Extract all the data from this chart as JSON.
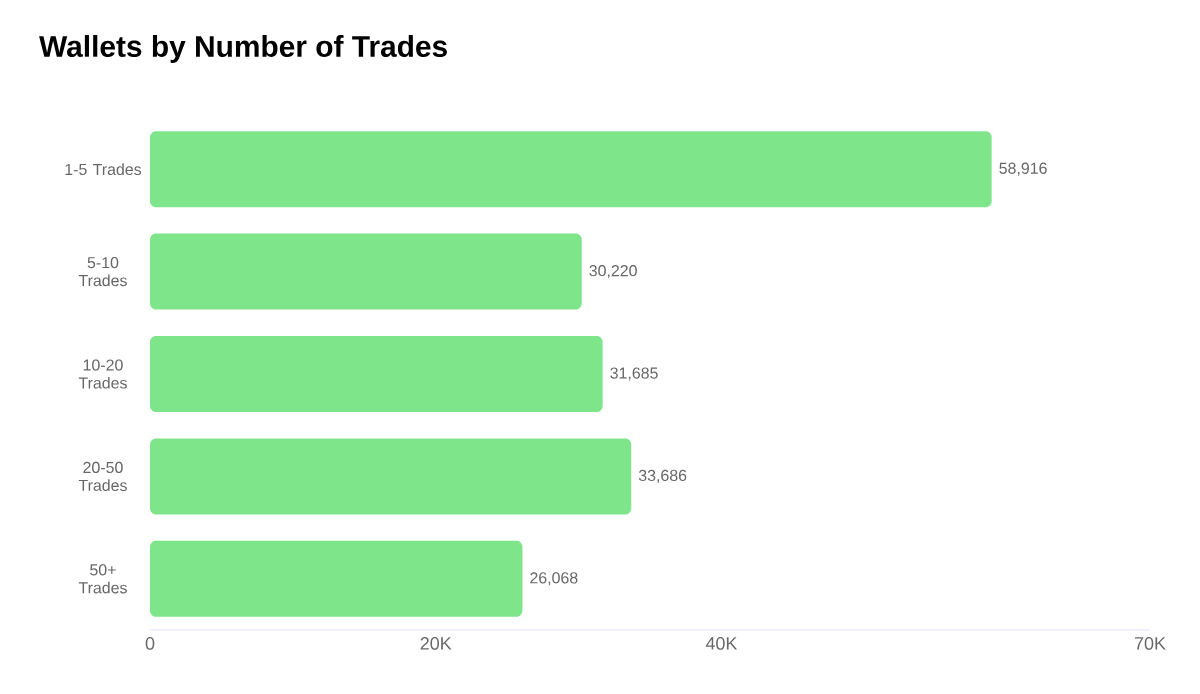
{
  "chart_data": {
    "type": "bar",
    "orientation": "horizontal",
    "title": "Wallets by Number of Trades",
    "categories": [
      "1-5 Trades",
      "5-10 Trades",
      "10-20 Trades",
      "20-50 Trades",
      "50+ Trades"
    ],
    "values": [
      58916,
      30220,
      31685,
      33686,
      26068
    ],
    "value_labels": [
      "58,916",
      "30,220",
      "31,685",
      "33,686",
      "26,068"
    ],
    "color": "#7ee58a",
    "xlim": [
      0,
      70000
    ],
    "xticks": [
      0,
      {
        "value": 20000,
        "label": "20K"
      },
      {
        "value": 40000,
        "label": "40K"
      },
      {
        "value": 70000,
        "label": "70K"
      }
    ],
    "grid": false
  }
}
